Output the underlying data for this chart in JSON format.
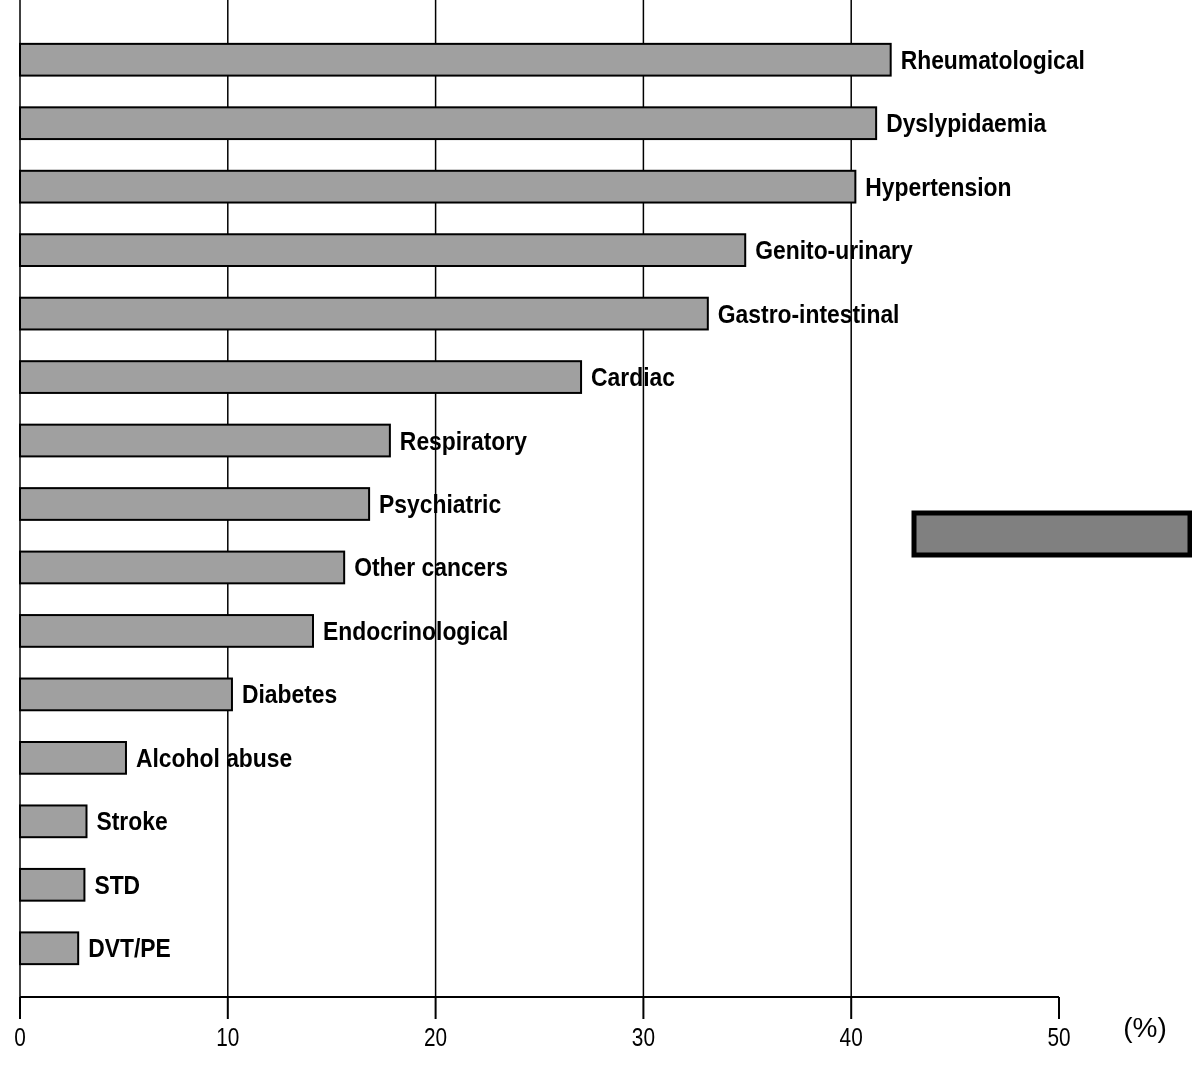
{
  "chart_data": {
    "type": "bar",
    "orientation": "horizontal",
    "xlabel": "(%)",
    "categories": [
      "Rheumatological",
      "Dyslypidaemia",
      "Hypertension",
      "Genito-urinary",
      "Gastro-intestinal",
      "Cardiac",
      "Respiratory",
      "Psychiatric",
      "Other cancers",
      "Endocrinological",
      "Diabetes",
      "Alcohol abuse",
      "Stroke",
      "STD",
      "DVT/PE"
    ],
    "values": [
      41.9,
      41.2,
      40.2,
      34.9,
      33.1,
      27.0,
      17.8,
      16.8,
      15.6,
      14.1,
      10.2,
      5.1,
      3.2,
      3.1,
      2.8
    ],
    "color": "#a0a0a0",
    "xlim": [
      0,
      50
    ],
    "xticks": [
      0,
      10,
      20,
      30,
      40,
      50
    ],
    "grid": "x"
  }
}
